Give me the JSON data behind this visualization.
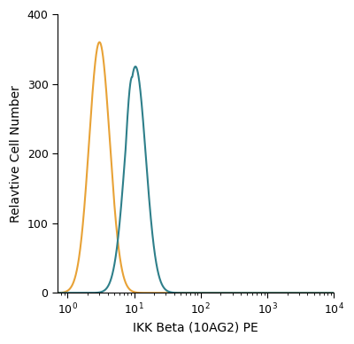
{
  "title": "",
  "xlabel": "IKK Beta (10AG2) PE",
  "ylabel": "Relavtive Cell Number",
  "xlim_log": [
    -0.15,
    4.0
  ],
  "ylim": [
    0,
    400
  ],
  "yticks": [
    0,
    100,
    200,
    300,
    400
  ],
  "orange_color": "#E8A236",
  "blue_color": "#2E7F8A",
  "orange_peak_log": 0.48,
  "orange_peak_height": 360,
  "orange_sigma": 0.155,
  "blue_peak_log": 1.02,
  "blue_peak_height": 325,
  "blue_peak_log2": 0.97,
  "blue_peak_height2": 310,
  "blue_sigma": 0.155,
  "bg_color": "#ffffff",
  "linewidth": 1.5
}
